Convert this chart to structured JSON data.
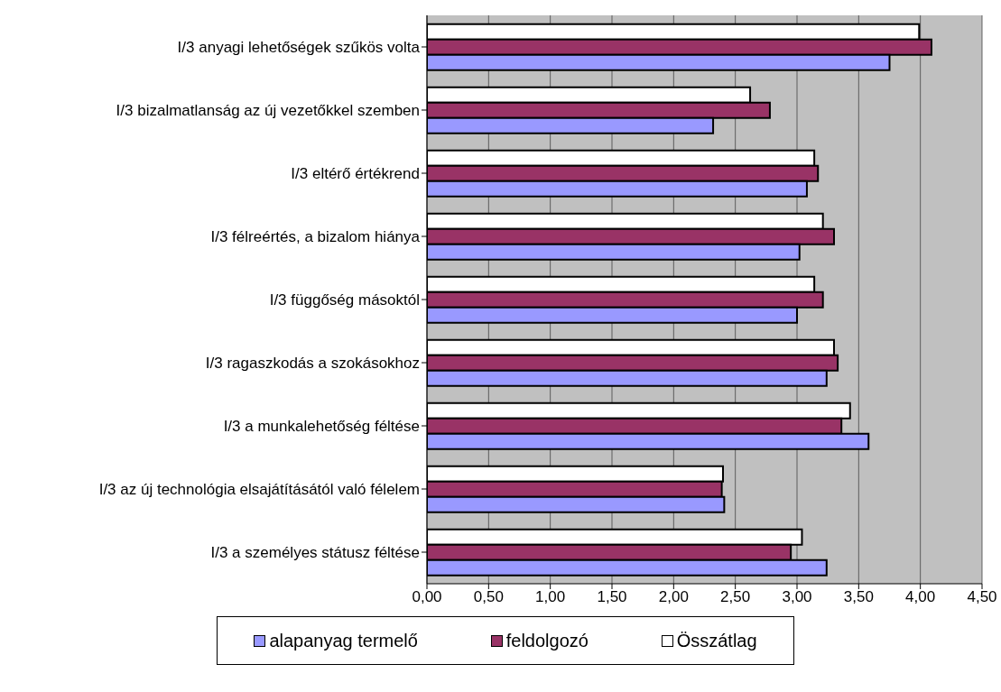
{
  "chart_data": {
    "type": "bar",
    "orientation": "horizontal",
    "categories": [
      "I/3 anyagi lehetőségek szűkös volta",
      "I/3 bizalmatlanság az új vezetőkkel szemben",
      "I/3 eltérő értékrend",
      "I/3 félreértés, a bizalom hiánya",
      "I/3 függőség másoktól",
      "I/3 ragaszkodás a szokásokhoz",
      "I/3 a munkalehetőség féltése",
      "I/3 az új technológia elsajátításától való félelem",
      "I/3 a személyes státusz féltése"
    ],
    "series": [
      {
        "name": "alapanyag termelő",
        "color": "#9999ff",
        "values": [
          3.75,
          2.32,
          3.08,
          3.02,
          3.0,
          3.24,
          3.58,
          2.41,
          3.24
        ]
      },
      {
        "name": "feldolgozó",
        "color": "#993366",
        "values": [
          4.09,
          2.78,
          3.17,
          3.3,
          3.21,
          3.33,
          3.36,
          2.39,
          2.95
        ]
      },
      {
        "name": "Összátlag",
        "color": "#ffffff",
        "values": [
          3.99,
          2.62,
          3.14,
          3.21,
          3.14,
          3.3,
          3.43,
          2.4,
          3.04
        ]
      }
    ],
    "xlim": [
      0,
      4.5
    ],
    "xticks": [
      {
        "value": 0,
        "label": "0,00"
      },
      {
        "value": 0.5,
        "label": "0,50"
      },
      {
        "value": 1,
        "label": "1,00"
      },
      {
        "value": 1.5,
        "label": "1,50"
      },
      {
        "value": 2,
        "label": "2,00"
      },
      {
        "value": 2.5,
        "label": "2,50"
      },
      {
        "value": 3,
        "label": "3,00"
      },
      {
        "value": 3.5,
        "label": "3,50"
      },
      {
        "value": 4,
        "label": "4,00"
      },
      {
        "value": 4.5,
        "label": "4,50"
      }
    ],
    "grid": "x",
    "legend": "bottom"
  }
}
